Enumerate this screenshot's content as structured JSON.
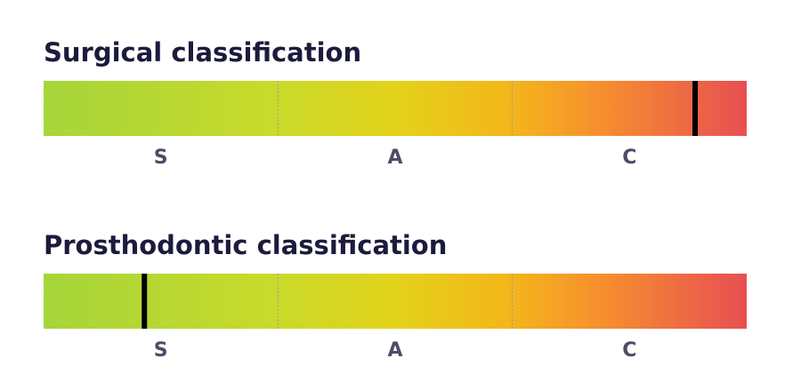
{
  "chart_data": [
    {
      "type": "gauge",
      "title": "Surgical classification",
      "categories": [
        "S",
        "A",
        "C"
      ],
      "value": 2.78,
      "xlim": [
        0,
        3
      ],
      "color": "#000000"
    },
    {
      "type": "gauge",
      "title": "Prosthodontic classification",
      "categories": [
        "S",
        "A",
        "C"
      ],
      "value": 0.43,
      "xlim": [
        0,
        3
      ],
      "color": "#000000"
    }
  ]
}
